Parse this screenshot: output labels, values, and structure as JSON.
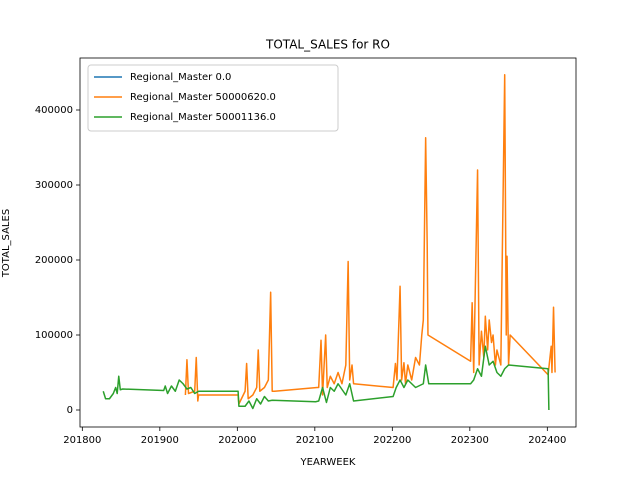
{
  "chart_data": {
    "type": "line",
    "title": "TOTAL_SALES for RO",
    "x_label": "YEARWEEK",
    "y_label": "TOTAL_SALES",
    "xlim": [
      201797,
      202437
    ],
    "xticks": [
      201800,
      201900,
      202000,
      202100,
      202200,
      202300,
      202400
    ],
    "ylim": [
      -22667,
      469333
    ],
    "yticks": [
      0,
      100000,
      200000,
      300000,
      400000
    ],
    "legend": "upper left",
    "series": [
      {
        "name": "Regional_Master 0.0",
        "color": "#1f77b4",
        "x": [],
        "values": []
      },
      {
        "name": "Regional_Master 50000620.0",
        "color": "#ff7f0e",
        "x": [
          201933,
          201935,
          201937,
          201945,
          201947,
          201949,
          201950,
          202001,
          202002,
          202010,
          202012,
          202014,
          202020,
          202025,
          202027,
          202029,
          202035,
          202040,
          202043,
          202045,
          202048,
          202103,
          202105,
          202108,
          202110,
          202114,
          202116,
          202120,
          202125,
          202130,
          202135,
          202140,
          202143,
          202145,
          202148,
          202150,
          202201,
          202204,
          202206,
          202210,
          202212,
          202215,
          202217,
          202220,
          202225,
          202230,
          202235,
          202238,
          202240,
          202243,
          202245,
          202246,
          202301,
          202303,
          202305,
          202310,
          202312,
          202315,
          202318,
          202320,
          202323,
          202325,
          202328,
          202330,
          202333,
          202335,
          202340,
          202345,
          202347,
          202348,
          202350,
          202352,
          202401,
          202405,
          202406,
          202408,
          202410
        ],
        "values": [
          20000,
          67000,
          22000,
          25000,
          70000,
          12000,
          20000,
          20000,
          8000,
          25000,
          62000,
          15000,
          20000,
          30000,
          80000,
          25000,
          30000,
          40000,
          157000,
          25000,
          25000,
          30000,
          30000,
          93000,
          20000,
          100000,
          30000,
          45000,
          35000,
          50000,
          35000,
          60000,
          198000,
          40000,
          60000,
          35000,
          30000,
          62000,
          40000,
          165000,
          40000,
          63000,
          35000,
          60000,
          40000,
          70000,
          60000,
          100000,
          120000,
          363000,
          220000,
          100000,
          65000,
          143000,
          50000,
          320000,
          60000,
          105000,
          70000,
          125000,
          80000,
          120000,
          90000,
          100000,
          60000,
          80000,
          60000,
          447000,
          100000,
          205000,
          60000,
          100000,
          47000,
          85000,
          50000,
          137000,
          50000
        ]
      },
      {
        "name": "Regional_Master 50001136.0",
        "color": "#2ca02c",
        "x": [
          201827,
          201830,
          201835,
          201840,
          201843,
          201845,
          201847,
          201849,
          201852,
          201905,
          201907,
          201910,
          201915,
          201920,
          201925,
          201930,
          201935,
          201940,
          201945,
          201950,
          202001,
          202002,
          202010,
          202015,
          202020,
          202025,
          202030,
          202035,
          202040,
          202045,
          202101,
          202105,
          202110,
          202115,
          202120,
          202125,
          202130,
          202140,
          202145,
          202150,
          202201,
          202205,
          202210,
          202215,
          202220,
          202225,
          202230,
          202240,
          202243,
          202247,
          202301,
          202305,
          202310,
          202315,
          202320,
          202325,
          202330,
          202335,
          202340,
          202345,
          202350,
          202401,
          202402
        ],
        "values": [
          25000,
          15000,
          15000,
          22000,
          30000,
          22000,
          45000,
          27000,
          28000,
          26000,
          32000,
          22000,
          32000,
          25000,
          40000,
          35000,
          28000,
          30000,
          22000,
          25000,
          25000,
          5000,
          5000,
          12000,
          2000,
          15000,
          8000,
          18000,
          12000,
          13000,
          11000,
          12000,
          30000,
          10000,
          30000,
          25000,
          35000,
          20000,
          35000,
          12000,
          18000,
          30000,
          40000,
          30000,
          40000,
          35000,
          30000,
          35000,
          60000,
          35000,
          35000,
          40000,
          55000,
          45000,
          85000,
          60000,
          65000,
          50000,
          45000,
          55000,
          60000,
          55000,
          0
        ]
      }
    ]
  }
}
